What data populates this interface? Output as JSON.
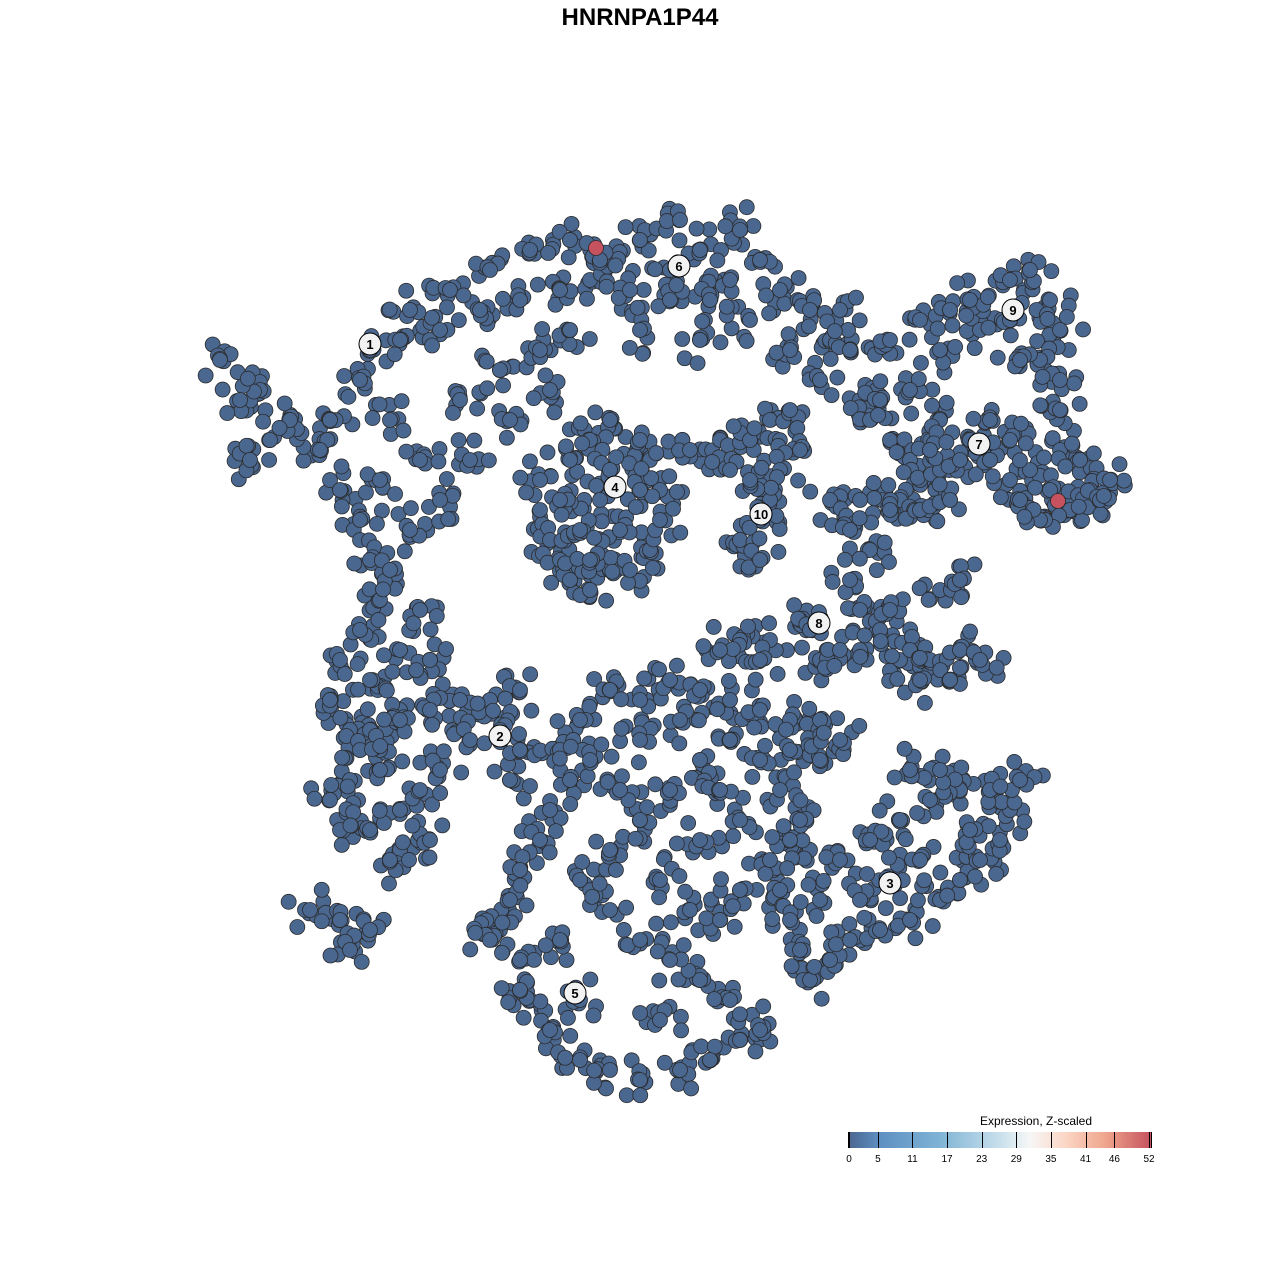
{
  "chart_data": {
    "type": "scatter",
    "title": "HNRNPA1P44",
    "xlabel": "",
    "ylabel": "",
    "grid": false,
    "axes_visible": false,
    "xlim": [
      -64,
      64
    ],
    "ylim": [
      -64,
      64
    ],
    "point_color": "#4a6790",
    "point_outline": "#2b2b2b",
    "highlight_color": "#c5525e",
    "legend": {
      "title": "Expression, Z-scaled",
      "placement": "bottom-right",
      "ticks": [
        0,
        5,
        11,
        17,
        23,
        29,
        35,
        41,
        46,
        52
      ],
      "range": [
        0,
        52
      ],
      "colors": [
        "#4a6790",
        "#5e8fc2",
        "#7fb3d5",
        "#c8e0ec",
        "#f7f7f7",
        "#fbd5c3",
        "#efa58c",
        "#c5525e"
      ]
    },
    "clusters": [
      {
        "label": "1",
        "center": [
          -27,
          29.6
        ],
        "points": [
          [
            -27,
            29
          ],
          [
            -24,
            30
          ],
          [
            -20,
            31
          ],
          [
            -16,
            33
          ],
          [
            -12,
            34
          ],
          [
            -8,
            35
          ],
          [
            -5,
            36
          ],
          [
            -3,
            38
          ],
          [
            -7,
            40
          ],
          [
            -11,
            39
          ],
          [
            -15,
            37
          ],
          [
            -19,
            35
          ],
          [
            -23,
            33
          ],
          [
            -28,
            26
          ],
          [
            -31,
            22
          ],
          [
            -32,
            19
          ],
          [
            -30,
            15
          ],
          [
            -28,
            12
          ],
          [
            -27,
            8
          ],
          [
            -26,
            4
          ],
          [
            -28,
            1
          ],
          [
            -30,
            -2
          ],
          [
            -31,
            -6
          ],
          [
            -29,
            -9
          ],
          [
            -26,
            -11
          ],
          [
            -27,
            -4
          ],
          [
            -24,
            -1
          ],
          [
            -22,
            3
          ],
          [
            -25,
            7
          ],
          [
            -23,
            11
          ],
          [
            -20,
            14
          ],
          [
            -22,
            18
          ],
          [
            -25,
            22
          ],
          [
            -18,
            24
          ],
          [
            -14,
            27
          ],
          [
            -10,
            29
          ],
          [
            -7,
            31
          ],
          [
            -26,
            16
          ],
          [
            -35,
            22
          ],
          [
            -38,
            25
          ],
          [
            -42,
            28
          ],
          [
            -40,
            24
          ],
          [
            -37,
            20
          ],
          [
            -39,
            18
          ],
          [
            -21,
            -2
          ],
          [
            -24,
            -7
          ],
          [
            -13,
            22
          ],
          [
            -17,
            18
          ],
          [
            -9,
            25
          ]
        ]
      },
      {
        "label": "2",
        "center": [
          -14,
          -9.6
        ],
        "points": [
          [
            -12,
            -5
          ],
          [
            -15,
            -6
          ],
          [
            -18,
            -6
          ],
          [
            -21,
            -7
          ],
          [
            -24,
            -8
          ],
          [
            -27,
            -9
          ],
          [
            -28,
            -11
          ],
          [
            -26,
            -13
          ],
          [
            -29,
            -14
          ],
          [
            -31,
            -16
          ],
          [
            -30,
            -19
          ],
          [
            -27,
            -19
          ],
          [
            -24,
            -17
          ],
          [
            -22,
            -15
          ],
          [
            -20,
            -13
          ],
          [
            -17,
            -10
          ],
          [
            -14,
            -9
          ],
          [
            -24,
            -21
          ],
          [
            -21,
            -20
          ],
          [
            -33,
            -27
          ],
          [
            -30,
            -28
          ],
          [
            -27,
            -29
          ],
          [
            -29,
            -31
          ],
          [
            -25,
            -22
          ],
          [
            -13,
            -14
          ],
          [
            -12,
            -11
          ]
        ]
      },
      {
        "label": "3",
        "center": [
          25,
          -24.3
        ],
        "points": [
          [
            14,
            -25
          ],
          [
            15,
            -28
          ],
          [
            16,
            -31
          ],
          [
            17,
            -34
          ],
          [
            19,
            -32
          ],
          [
            21,
            -30
          ],
          [
            24,
            -29
          ],
          [
            27,
            -28
          ],
          [
            30,
            -26
          ],
          [
            32,
            -24
          ],
          [
            34,
            -22
          ],
          [
            36,
            -20
          ],
          [
            37,
            -17
          ],
          [
            35,
            -15
          ],
          [
            32,
            -15
          ],
          [
            29,
            -16
          ],
          [
            26,
            -18
          ],
          [
            23,
            -20
          ],
          [
            20,
            -22
          ],
          [
            17,
            -21
          ],
          [
            22,
            -26
          ],
          [
            28,
            -22
          ],
          [
            33,
            -19
          ],
          [
            25,
            -24
          ],
          [
            18,
            -26
          ],
          [
            38,
            -14
          ],
          [
            30,
            -13
          ],
          [
            27,
            -13
          ],
          [
            15,
            -20
          ]
        ]
      },
      {
        "label": "4",
        "center": [
          -2.5,
          15.3
        ],
        "points": [
          [
            -10,
            16
          ],
          [
            -10,
            13
          ],
          [
            -9,
            10
          ],
          [
            -8,
            8
          ],
          [
            -7,
            6
          ],
          [
            -5,
            5
          ],
          [
            -3,
            7
          ],
          [
            -1,
            7
          ],
          [
            1,
            9
          ],
          [
            2,
            12
          ],
          [
            2,
            15
          ],
          [
            1,
            18
          ],
          [
            0,
            20
          ],
          [
            -3,
            22
          ],
          [
            -5,
            20
          ],
          [
            -7,
            18
          ],
          [
            -4,
            14
          ],
          [
            -2,
            11
          ],
          [
            -6,
            11
          ],
          [
            -3,
            17
          ],
          [
            -8,
            14
          ],
          [
            0,
            15
          ],
          [
            -5,
            8
          ]
        ]
      },
      {
        "label": "5",
        "center": [
          -6.5,
          -35.3
        ],
        "points": [
          [
            -3,
            -5
          ],
          [
            0,
            -6
          ],
          [
            3,
            -4
          ],
          [
            6,
            -5
          ],
          [
            9,
            -6
          ],
          [
            12,
            -7
          ],
          [
            15,
            -8
          ],
          [
            18,
            -8
          ],
          [
            -6,
            -8
          ],
          [
            -8,
            -11
          ],
          [
            -7,
            -14
          ],
          [
            -9,
            -17
          ],
          [
            -10,
            -20
          ],
          [
            -12,
            -23
          ],
          [
            -13,
            -26
          ],
          [
            -14,
            -29
          ],
          [
            -12,
            -32
          ],
          [
            -11,
            -36
          ],
          [
            -9,
            -39
          ],
          [
            -6,
            -42
          ],
          [
            -3,
            -43
          ],
          [
            0,
            -44
          ],
          [
            4,
            -43
          ],
          [
            7,
            -42
          ],
          [
            10,
            -40
          ],
          [
            12,
            -39
          ],
          [
            9,
            -36
          ],
          [
            6,
            -34
          ],
          [
            3,
            -32
          ],
          [
            0,
            -30
          ],
          [
            -3,
            -27
          ],
          [
            -6,
            -24
          ],
          [
            -3,
            -21
          ],
          [
            0,
            -18
          ],
          [
            3,
            -15
          ],
          [
            6,
            -12
          ],
          [
            9,
            -10
          ],
          [
            12,
            -12
          ],
          [
            14,
            -15
          ],
          [
            10,
            -18
          ],
          [
            6,
            -20
          ],
          [
            2,
            -24
          ],
          [
            -2,
            -15
          ],
          [
            -5,
            -12
          ],
          [
            5,
            -27
          ],
          [
            8,
            -28
          ],
          [
            2,
            -38
          ],
          [
            -6,
            -36
          ],
          [
            -8,
            -30
          ],
          [
            15,
            -11
          ],
          [
            16,
            -18
          ],
          [
            13,
            -22
          ],
          [
            10,
            -25
          ],
          [
            4,
            -8
          ],
          [
            0,
            -10
          ],
          [
            8,
            -15
          ],
          [
            18,
            -12
          ],
          [
            20,
            -10
          ],
          [
            -15,
            -30
          ],
          [
            -12,
            -35
          ]
        ]
      },
      {
        "label": "6",
        "center": [
          3.9,
          37.4
        ],
        "points": [
          [
            -4,
            38
          ],
          [
            0,
            40
          ],
          [
            3,
            37
          ],
          [
            6,
            39
          ],
          [
            9,
            36
          ],
          [
            12,
            38
          ],
          [
            14,
            35
          ],
          [
            17,
            33
          ],
          [
            19,
            30
          ],
          [
            21,
            29
          ],
          [
            11,
            32
          ],
          [
            7,
            34
          ],
          [
            3,
            34
          ],
          [
            -1,
            35
          ],
          [
            15,
            29
          ],
          [
            20,
            33
          ],
          [
            10,
            41
          ],
          [
            4,
            42
          ],
          [
            18,
            26
          ],
          [
            22,
            24
          ],
          [
            6,
            30
          ],
          [
            0,
            31
          ],
          [
            23,
            22
          ],
          [
            25,
            20
          ],
          [
            27,
            18
          ],
          [
            28,
            16
          ],
          [
            26,
            14
          ],
          [
            30,
            17
          ]
        ]
      },
      {
        "label": "7",
        "center": [
          33.9,
          19.6
        ],
        "points": [
          [
            24,
            24
          ],
          [
            27,
            25
          ],
          [
            30,
            22
          ],
          [
            33,
            20
          ],
          [
            35,
            22
          ],
          [
            32,
            18
          ],
          [
            29,
            19
          ],
          [
            35,
            18
          ],
          [
            37,
            16
          ],
          [
            39,
            17
          ],
          [
            41,
            15
          ],
          [
            43,
            13
          ],
          [
            40,
            12
          ],
          [
            38,
            14
          ],
          [
            42,
            19
          ],
          [
            44,
            18
          ],
          [
            45,
            15
          ],
          [
            46,
            14
          ],
          [
            47,
            16
          ],
          [
            37,
            20
          ]
        ]
      },
      {
        "label": "8",
        "center": [
          17.9,
          1.7
        ],
        "points": [
          [
            19,
            14
          ],
          [
            22,
            14
          ],
          [
            25,
            13
          ],
          [
            28,
            13
          ],
          [
            31,
            14
          ],
          [
            21,
            11
          ],
          [
            23,
            9
          ],
          [
            21,
            6
          ],
          [
            22,
            3
          ],
          [
            24,
            1
          ],
          [
            26,
            -2
          ],
          [
            27,
            -1
          ],
          [
            25,
            3
          ],
          [
            30,
            5
          ],
          [
            32,
            6
          ],
          [
            29,
            -2
          ],
          [
            32,
            -1
          ],
          [
            34,
            -2
          ],
          [
            31,
            -4
          ],
          [
            28,
            -4
          ],
          [
            16,
            2
          ],
          [
            13,
            0
          ],
          [
            10,
            0
          ],
          [
            8,
            -1
          ],
          [
            17,
            1
          ],
          [
            22,
            -1
          ],
          [
            12,
            -2
          ],
          [
            18,
            -2
          ],
          [
            20,
            -1
          ]
        ]
      },
      {
        "label": "9",
        "center": [
          37.3,
          33
        ],
        "points": [
          [
            25,
            30
          ],
          [
            28,
            32
          ],
          [
            31,
            33
          ],
          [
            34,
            31
          ],
          [
            37,
            36
          ],
          [
            39,
            37
          ],
          [
            41,
            34
          ],
          [
            42,
            31
          ],
          [
            40,
            28
          ],
          [
            37,
            32
          ],
          [
            33,
            34
          ],
          [
            30,
            29
          ],
          [
            42,
            26
          ],
          [
            38,
            28
          ],
          [
            42,
            23
          ]
        ]
      },
      {
        "label": "10",
        "center": [
          12.1,
          12.6
        ],
        "points": [
          [
            5,
            19
          ],
          [
            8,
            20
          ],
          [
            11,
            20
          ],
          [
            13,
            22
          ],
          [
            15,
            23
          ],
          [
            16,
            19
          ],
          [
            14,
            17
          ],
          [
            13,
            14
          ],
          [
            12,
            12
          ],
          [
            10,
            10
          ],
          [
            11,
            16
          ],
          [
            9,
            17
          ],
          [
            12,
            8
          ]
        ]
      }
    ],
    "high_expression_points": [
      [
        -4.4,
        39.2
      ],
      [
        41.8,
        13.9
      ]
    ]
  }
}
